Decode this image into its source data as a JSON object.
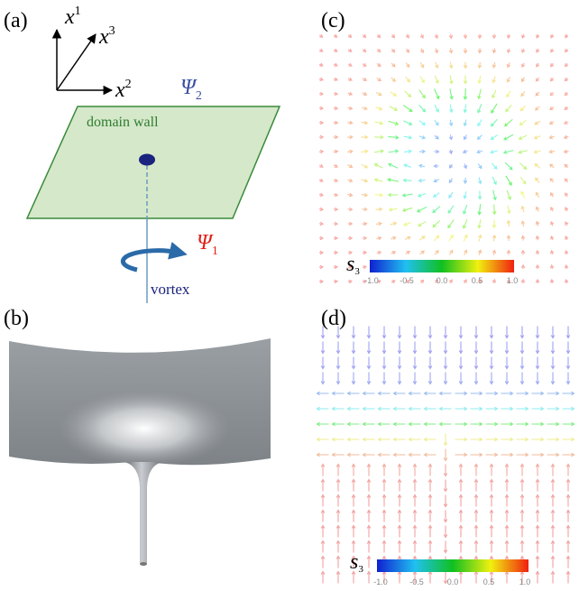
{
  "panel_a": {
    "label": "(a)",
    "axes": [
      {
        "symbol": "x",
        "index": "1"
      },
      {
        "symbol": "x",
        "index": "3"
      },
      {
        "symbol": "x",
        "index": "2"
      }
    ],
    "psi2": {
      "symbol": "Ψ",
      "index": "2"
    },
    "domain_wall": "domain wall",
    "psi1": {
      "symbol": "Ψ",
      "index": "1"
    },
    "vortex": "vortex"
  },
  "panel_b": {
    "label": "(b)"
  },
  "panel_c": {
    "label": "(c)",
    "colorbar": {
      "label": {
        "symbol": "s",
        "index": "3"
      },
      "ticks": [
        "-1.0",
        "-0.5",
        "0.0",
        "0.5",
        "1.0"
      ]
    }
  },
  "panel_d": {
    "label": "(d)",
    "colorbar": {
      "label": {
        "symbol": "s",
        "index": "3"
      },
      "ticks": [
        "-1.0",
        "-0.5",
        "0.0",
        "0.5",
        "1.0"
      ]
    }
  }
}
